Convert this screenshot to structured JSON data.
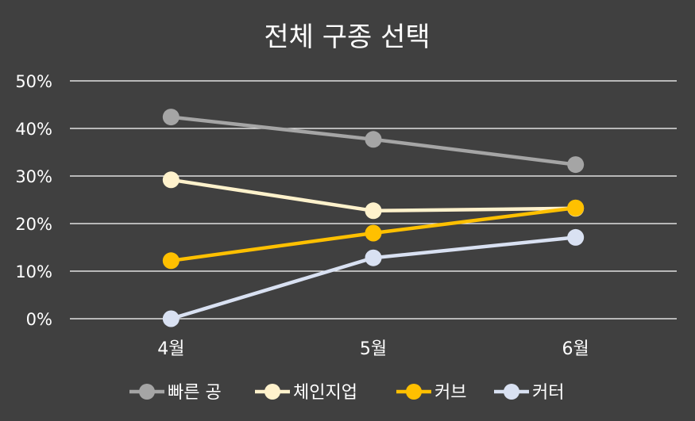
{
  "chart_data": {
    "type": "line",
    "title": "전체 구종 선택",
    "categories": [
      "4월",
      "5월",
      "6월"
    ],
    "ylim": [
      0,
      50
    ],
    "yticks": [
      0,
      10,
      20,
      30,
      40,
      50
    ],
    "ytick_labels": [
      "0%",
      "10%",
      "20%",
      "30%",
      "40%",
      "50%"
    ],
    "grid": true,
    "legend_position": "bottom",
    "series": [
      {
        "name": "빠른 공",
        "values": [
          42.4,
          37.7,
          32.4
        ],
        "color": "#a5a5a5"
      },
      {
        "name": "체인지업",
        "values": [
          29.2,
          22.7,
          23.2
        ],
        "color": "#fff2cc"
      },
      {
        "name": "커브",
        "values": [
          12.2,
          18.0,
          23.3
        ],
        "color": "#ffc000"
      },
      {
        "name": "커터",
        "values": [
          0.0,
          12.8,
          17.1
        ],
        "color": "#d9e1f2"
      }
    ]
  }
}
